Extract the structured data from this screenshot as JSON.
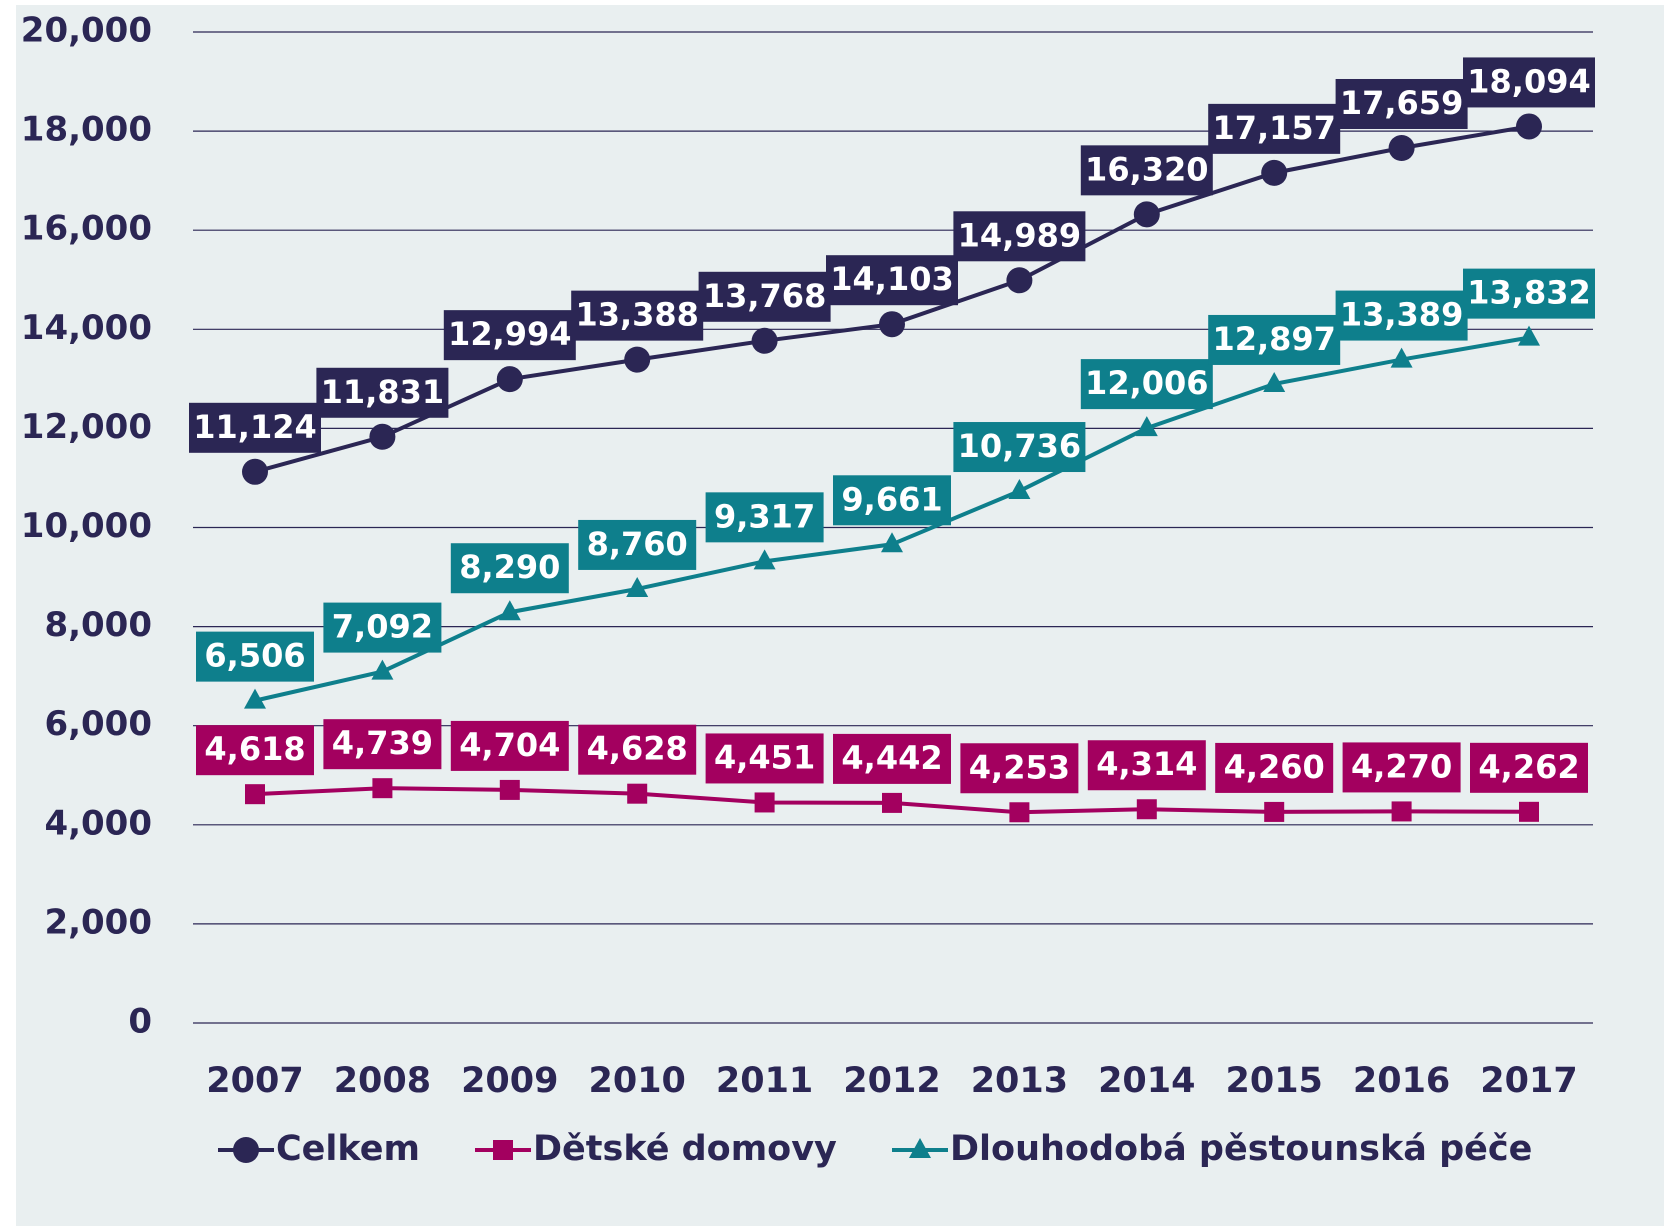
{
  "chart_data": {
    "type": "line",
    "categories": [
      "2007",
      "2008",
      "2009",
      "2010",
      "2011",
      "2012",
      "2013",
      "2014",
      "2015",
      "2016",
      "2017"
    ],
    "series": [
      {
        "name": "Celkem",
        "color": "#2b2654",
        "marker": "circle",
        "values": [
          11124,
          11831,
          12994,
          13388,
          13768,
          14103,
          14989,
          16320,
          17157,
          17659,
          18094
        ],
        "value_labels": [
          "11,124",
          "11,831",
          "12,994",
          "13,388",
          "13,768",
          "14,103",
          "14,989",
          "16,320",
          "17,157",
          "17,659",
          "18,094"
        ]
      },
      {
        "name": "Dětské domovy",
        "color": "#a3005f",
        "marker": "square",
        "values": [
          4618,
          4739,
          4704,
          4628,
          4451,
          4442,
          4253,
          4314,
          4260,
          4270,
          4262
        ],
        "value_labels": [
          "4,618",
          "4,739",
          "4,704",
          "4,628",
          "4,451",
          "4,442",
          "4,253",
          "4,314",
          "4,260",
          "4,270",
          "4,262"
        ]
      },
      {
        "name": "Dlouhodobá pěstounská péče",
        "color": "#0e7f8c",
        "marker": "triangle",
        "values": [
          6506,
          7092,
          8290,
          8760,
          9317,
          9661,
          10736,
          12006,
          12897,
          13389,
          13832
        ],
        "value_labels": [
          "6,506",
          "7,092",
          "8,290",
          "8,760",
          "9,317",
          "9,661",
          "10,736",
          "12,006",
          "12,897",
          "13,389",
          "13,832"
        ]
      }
    ],
    "ylim": [
      0,
      20000
    ],
    "yticks": [
      0,
      {
        "value": 2000,
        "label": "2,000"
      },
      {
        "value": 4000,
        "label": "4,000"
      },
      {
        "value": 6000,
        "label": "6,000"
      },
      {
        "value": 8000,
        "label": "8,000"
      },
      {
        "value": 10000,
        "label": "10,000"
      },
      {
        "value": 12000,
        "label": "12,000"
      },
      {
        "value": 14000,
        "label": "14,000"
      },
      {
        "value": 16000,
        "label": "16,000"
      },
      {
        "value": 18000,
        "label": "18,000"
      },
      {
        "value": 20000,
        "label": "20,000"
      }
    ],
    "grid": true,
    "legend": "bottom"
  }
}
